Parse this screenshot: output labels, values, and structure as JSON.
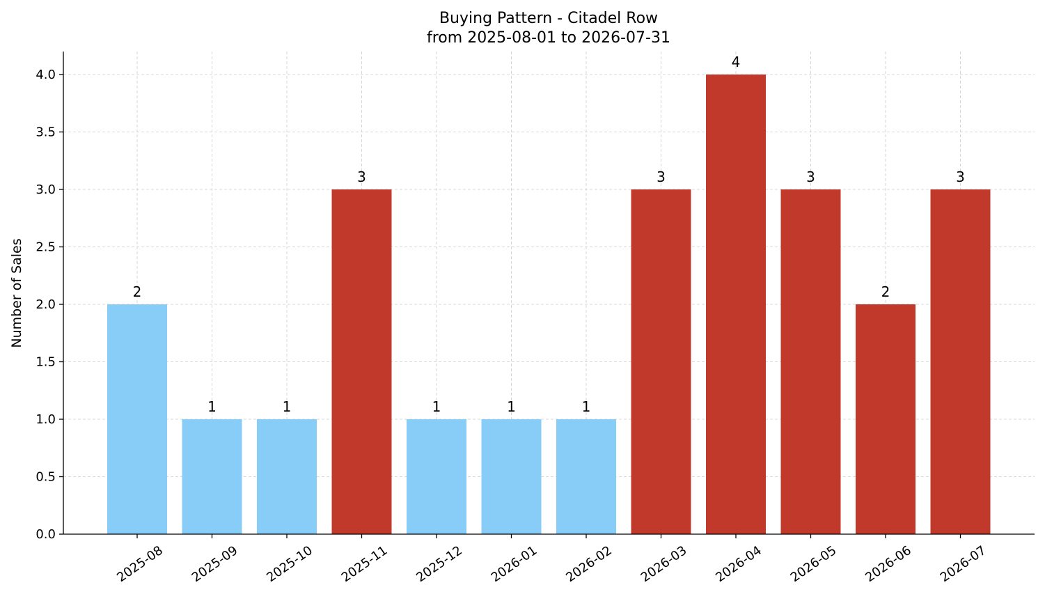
{
  "chart_data": {
    "type": "bar",
    "title": "Buying Pattern - Citadel Row",
    "subtitle": "from 2025-08-01 to 2026-07-31",
    "xlabel": "",
    "ylabel": "Number of Sales",
    "ylim": [
      0,
      4.2
    ],
    "yticks": [
      "0.0",
      "0.5",
      "1.0",
      "1.5",
      "2.0",
      "2.5",
      "3.0",
      "3.5",
      "4.0"
    ],
    "grid": true,
    "categories": [
      "2025-08",
      "2025-09",
      "2025-10",
      "2025-11",
      "2025-12",
      "2026-01",
      "2026-02",
      "2026-03",
      "2026-04",
      "2026-05",
      "2026-06",
      "2026-07"
    ],
    "values": [
      2,
      1,
      1,
      3,
      1,
      1,
      1,
      3,
      4,
      3,
      2,
      3
    ],
    "bar_colors": [
      "#87cdf8",
      "#87cdf8",
      "#87cdf8",
      "#c0392b",
      "#87cdf8",
      "#87cdf8",
      "#87cdf8",
      "#c0392b",
      "#c0392b",
      "#c0392b",
      "#c0392b",
      "#c0392b"
    ]
  }
}
